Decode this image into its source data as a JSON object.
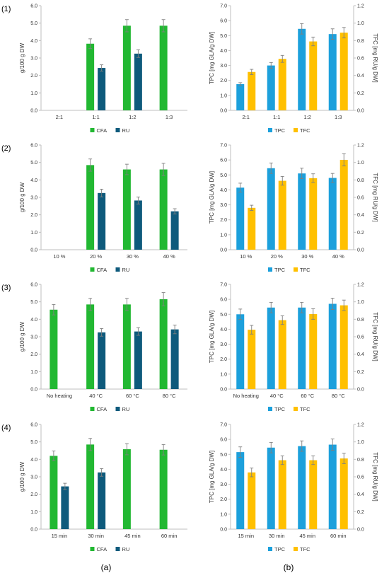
{
  "row_labels": [
    "(1)",
    "(2)",
    "(3)",
    "(4)"
  ],
  "column_labels": [
    "(a)",
    "(b)"
  ],
  "colors": {
    "CFA": "#22b832",
    "RU": "#0e5a7c",
    "TPC": "#1ca0dc",
    "TFC": "#ffc000",
    "axis": "#bfbfbf",
    "error": "#7f7f7f"
  },
  "chart_data": [
    {
      "id": "1a",
      "type": "bar",
      "categories": [
        "2:1",
        "1:1",
        "1:2",
        "1:3"
      ],
      "ylabel": "g/100 g DW",
      "ylim": [
        0,
        6
      ],
      "yticks": [
        "0.0",
        "1.0",
        "2.0",
        "3.0",
        "4.0",
        "5.0",
        "6.0"
      ],
      "series": [
        {
          "name": "CFA",
          "values": [
            null,
            3.82,
            4.85,
            4.85
          ],
          "errors": [
            null,
            0.28,
            0.35,
            0.35
          ]
        },
        {
          "name": "RU",
          "values": [
            null,
            2.43,
            3.25,
            null
          ],
          "errors": [
            null,
            0.18,
            0.22,
            null
          ]
        }
      ]
    },
    {
      "id": "1b",
      "type": "bar",
      "categories": [
        "2:1",
        "1:1",
        "1:2",
        "1:3"
      ],
      "ylabel": "TPC [mg GLA/g DW]",
      "ylabel_right": "TFC [mg RU/g DW]",
      "ylim": [
        0,
        7
      ],
      "yticks": [
        "0.0",
        "1.0",
        "2.0",
        "3.0",
        "4.0",
        "5.0",
        "6.0",
        "7.0"
      ],
      "ylim_right": [
        0,
        1.2
      ],
      "yticks_right": [
        "0.0",
        "0.2",
        "0.4",
        "0.6",
        "0.8",
        "1.0",
        "1.2"
      ],
      "series": [
        {
          "name": "TPC",
          "axis": "left",
          "values": [
            1.75,
            3.0,
            5.45,
            5.1
          ],
          "errors": [
            0.1,
            0.2,
            0.35,
            0.35
          ]
        },
        {
          "name": "TFC",
          "axis": "right",
          "values": [
            0.44,
            0.59,
            0.79,
            0.89
          ],
          "errors": [
            0.03,
            0.04,
            0.05,
            0.06
          ]
        }
      ]
    },
    {
      "id": "2a",
      "type": "bar",
      "categories": [
        "10 %",
        "20 %",
        "30 %",
        "40 %"
      ],
      "ylabel": "g/100 g DW",
      "ylim": [
        0,
        6
      ],
      "yticks": [
        "0.0",
        "1.0",
        "2.0",
        "3.0",
        "4.0",
        "5.0",
        "6.0"
      ],
      "series": [
        {
          "name": "CFA",
          "values": [
            null,
            4.85,
            4.6,
            4.6
          ],
          "errors": [
            null,
            0.35,
            0.3,
            0.35
          ]
        },
        {
          "name": "RU",
          "values": [
            null,
            3.25,
            2.82,
            2.2
          ],
          "errors": [
            null,
            0.22,
            0.2,
            0.15
          ]
        }
      ]
    },
    {
      "id": "2b",
      "type": "bar",
      "categories": [
        "10 %",
        "20 %",
        "30 %",
        "40 %"
      ],
      "ylabel": "TPC [mg GLA/g DW]",
      "ylabel_right": "TFC [mg RU/g DW]",
      "ylim": [
        0,
        7
      ],
      "yticks": [
        "0.0",
        "1.0",
        "2.0",
        "3.0",
        "4.0",
        "5.0",
        "6.0",
        "7.0"
      ],
      "ylim_right": [
        0,
        1.2
      ],
      "yticks_right": [
        "0.0",
        "0.2",
        "0.4",
        "0.6",
        "0.8",
        "1.0",
        "1.2"
      ],
      "series": [
        {
          "name": "TPC",
          "axis": "left",
          "values": [
            4.15,
            5.45,
            5.1,
            4.8
          ],
          "errors": [
            0.3,
            0.35,
            0.35,
            0.3
          ]
        },
        {
          "name": "TFC",
          "axis": "right",
          "values": [
            0.48,
            0.79,
            0.82,
            1.03
          ],
          "errors": [
            0.03,
            0.05,
            0.05,
            0.07
          ]
        }
      ]
    },
    {
      "id": "3a",
      "type": "bar",
      "categories": [
        "No heating",
        "40 °C",
        "60 °C",
        "80 °C"
      ],
      "ylabel": "g/100 g DW",
      "ylim": [
        0,
        6
      ],
      "yticks": [
        "0.0",
        "1.0",
        "2.0",
        "3.0",
        "4.0",
        "5.0",
        "6.0"
      ],
      "series": [
        {
          "name": "CFA",
          "values": [
            4.55,
            4.85,
            4.85,
            5.15
          ],
          "errors": [
            0.3,
            0.35,
            0.35,
            0.38
          ]
        },
        {
          "name": "RU",
          "values": [
            null,
            3.25,
            3.3,
            3.42
          ],
          "errors": [
            null,
            0.22,
            0.22,
            0.25
          ]
        }
      ]
    },
    {
      "id": "3b",
      "type": "bar",
      "categories": [
        "No heating",
        "40 °C",
        "60 °C",
        "80 °C"
      ],
      "ylabel": "TPC [mg GLA/g DW]",
      "ylabel_right": "TFC [mg RU/g DW]",
      "ylim": [
        0,
        7
      ],
      "yticks": [
        "0.0",
        "1.0",
        "2.0",
        "3.0",
        "4.0",
        "5.0",
        "6.0",
        "7.0"
      ],
      "ylim_right": [
        0,
        1.2
      ],
      "yticks_right": [
        "0.0",
        "0.2",
        "0.4",
        "0.6",
        "0.8",
        "1.0",
        "1.2"
      ],
      "series": [
        {
          "name": "TPC",
          "axis": "left",
          "values": [
            5.0,
            5.45,
            5.45,
            5.7
          ],
          "errors": [
            0.35,
            0.35,
            0.35,
            0.38
          ]
        },
        {
          "name": "TFC",
          "axis": "right",
          "values": [
            0.68,
            0.79,
            0.86,
            0.96
          ],
          "errors": [
            0.05,
            0.05,
            0.06,
            0.06
          ]
        }
      ]
    },
    {
      "id": "4a",
      "type": "bar",
      "categories": [
        "15 min",
        "30 min",
        "45 min",
        "60 min"
      ],
      "ylabel": "g/100 g DW",
      "ylim": [
        0,
        6
      ],
      "yticks": [
        "0.0",
        "1.0",
        "2.0",
        "3.0",
        "4.0",
        "5.0",
        "6.0"
      ],
      "series": [
        {
          "name": "CFA",
          "values": [
            4.2,
            4.85,
            4.58,
            4.55
          ],
          "errors": [
            0.28,
            0.35,
            0.32,
            0.3
          ]
        },
        {
          "name": "RU",
          "values": [
            2.45,
            3.25,
            null,
            null
          ],
          "errors": [
            0.18,
            0.22,
            null,
            null
          ]
        }
      ]
    },
    {
      "id": "4b",
      "type": "bar",
      "categories": [
        "15 min",
        "30 min",
        "45 min",
        "60 min"
      ],
      "ylabel": "TPC [mg GLA/g DW]",
      "ylabel_right": "TFC [mg RU/g DW]",
      "ylim": [
        0,
        7
      ],
      "yticks": [
        "0.0",
        "1.0",
        "2.0",
        "3.0",
        "4.0",
        "5.0",
        "6.0",
        "7.0"
      ],
      "ylim_right": [
        0,
        1.2
      ],
      "yticks_right": [
        "0.0",
        "0.2",
        "0.4",
        "0.6",
        "0.8",
        "1.0",
        "1.2"
      ],
      "series": [
        {
          "name": "TPC",
          "axis": "left",
          "values": [
            5.15,
            5.45,
            5.55,
            5.65
          ],
          "errors": [
            0.35,
            0.35,
            0.35,
            0.38
          ]
        },
        {
          "name": "TFC",
          "axis": "right",
          "values": [
            0.65,
            0.79,
            0.79,
            0.81
          ],
          "errors": [
            0.05,
            0.05,
            0.05,
            0.06
          ]
        }
      ]
    }
  ]
}
